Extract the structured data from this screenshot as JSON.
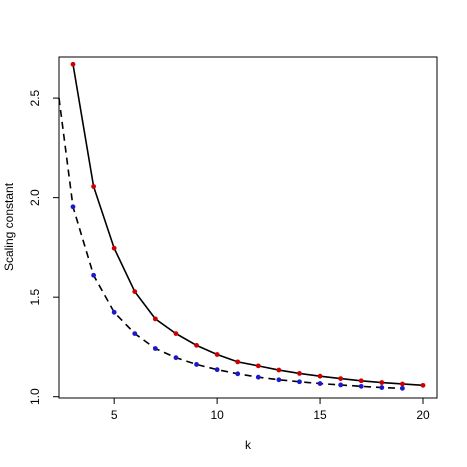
{
  "chart_data": {
    "type": "line",
    "xlabel": "k",
    "ylabel": "Scaling constant",
    "xlim": [
      2.32,
      20.68
    ],
    "ylim": [
      0.9935,
      2.7065
    ],
    "x_ticks": [
      5,
      10,
      15,
      20
    ],
    "y_ticks": [
      1.0,
      1.5,
      2.0,
      2.5
    ],
    "x_tick_labels": [
      "5",
      "10",
      "15",
      "20"
    ],
    "y_tick_labels": [
      "1.0",
      "1.5",
      "2.0",
      "2.5"
    ],
    "grid": false,
    "legend": "none",
    "series": [
      {
        "line_style": "solid",
        "line_color": "#000000",
        "point_color": "#cc0000",
        "x": [
          3,
          4,
          5,
          6,
          7,
          8,
          9,
          10,
          11,
          12,
          13,
          14,
          15,
          16,
          17,
          18,
          19,
          20
        ],
        "y": [
          2.67,
          2.056,
          1.746,
          1.528,
          1.391,
          1.317,
          1.258,
          1.212,
          1.175,
          1.155,
          1.134,
          1.117,
          1.103,
          1.091,
          1.08,
          1.071,
          1.064,
          1.057
        ]
      },
      {
        "line_style": "dashed",
        "line_color": "#000000",
        "point_color": "#1a1acc",
        "x_line_start": 2.32,
        "y_line_start": 2.5,
        "x": [
          3,
          4,
          5,
          6,
          7,
          8,
          9,
          10,
          11,
          12,
          13,
          14,
          15,
          16,
          17,
          18,
          19
        ],
        "y": [
          1.954,
          1.61,
          1.424,
          1.317,
          1.242,
          1.196,
          1.162,
          1.136,
          1.115,
          1.098,
          1.085,
          1.075,
          1.066,
          1.059,
          1.052,
          1.046,
          1.042
        ]
      }
    ]
  }
}
